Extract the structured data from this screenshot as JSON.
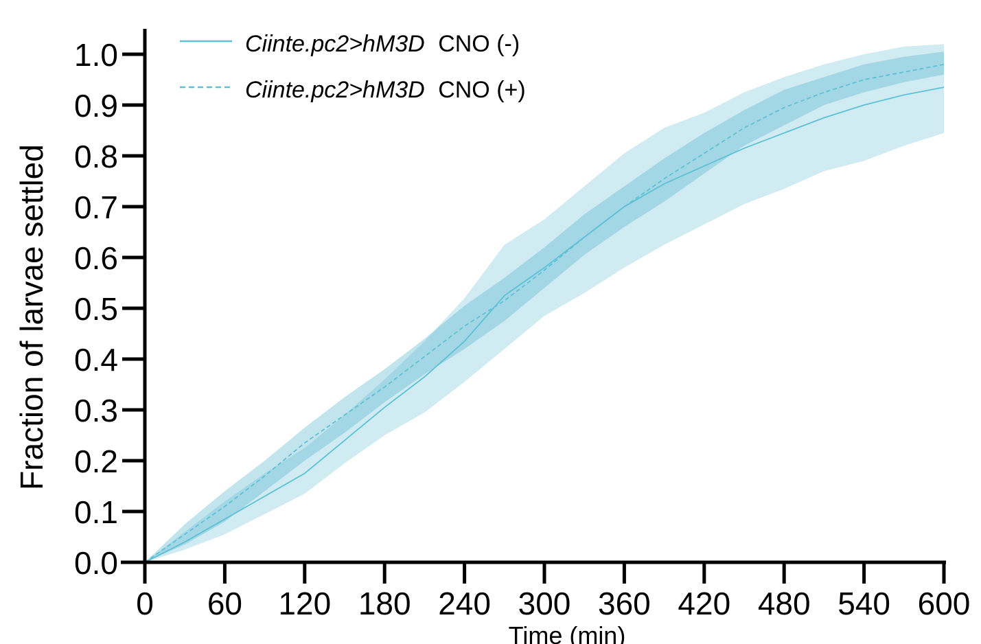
{
  "chart_data": {
    "type": "line",
    "title": "",
    "xlabel": "Time (min)",
    "ylabel": "Fraction of larvae settled",
    "xlim": [
      0,
      600
    ],
    "ylim": [
      0,
      1.0
    ],
    "x_ticks": [
      "0",
      "60",
      "120",
      "180",
      "240",
      "300",
      "360",
      "420",
      "480",
      "540",
      "600"
    ],
    "y_ticks": [
      "0.0",
      "0.1",
      "0.2",
      "0.3",
      "0.4",
      "0.5",
      "0.6",
      "0.7",
      "0.8",
      "0.9",
      "1.0"
    ],
    "grid": false,
    "legend_position": "top-left",
    "line_color": "#5bc2d6",
    "band_color": "#5bb8d0",
    "series": [
      {
        "name": "Ciinte.pc2>hM3D CNO (-)",
        "name_italic": "Ciinte.pc2>hM3D",
        "name_rest": "CNO (-)",
        "style": "solid",
        "x": [
          0,
          30,
          60,
          90,
          120,
          150,
          180,
          210,
          240,
          270,
          300,
          330,
          360,
          390,
          420,
          450,
          480,
          510,
          540,
          570,
          600
        ],
        "y": [
          0,
          0.04,
          0.085,
          0.13,
          0.175,
          0.24,
          0.305,
          0.365,
          0.435,
          0.525,
          0.58,
          0.64,
          0.7,
          0.745,
          0.78,
          0.815,
          0.845,
          0.875,
          0.9,
          0.92,
          0.935
        ],
        "lower": [
          0,
          0.025,
          0.055,
          0.095,
          0.135,
          0.195,
          0.25,
          0.295,
          0.355,
          0.42,
          0.485,
          0.53,
          0.58,
          0.625,
          0.665,
          0.705,
          0.735,
          0.77,
          0.79,
          0.82,
          0.845
        ],
        "upper": [
          0,
          0.06,
          0.12,
          0.175,
          0.225,
          0.29,
          0.36,
          0.435,
          0.52,
          0.625,
          0.675,
          0.74,
          0.805,
          0.855,
          0.885,
          0.925,
          0.955,
          0.98,
          1.0,
          1.015,
          1.02
        ]
      },
      {
        "name": "Ciinte.pc2>hM3D CNO (+)",
        "name_italic": "Ciinte.pc2>hM3D",
        "name_rest": "CNO (+)",
        "style": "dashed",
        "x": [
          0,
          30,
          60,
          90,
          120,
          150,
          180,
          210,
          240,
          270,
          300,
          330,
          360,
          390,
          420,
          450,
          480,
          510,
          540,
          570,
          600
        ],
        "y": [
          0,
          0.055,
          0.11,
          0.17,
          0.235,
          0.29,
          0.345,
          0.405,
          0.465,
          0.515,
          0.575,
          0.64,
          0.7,
          0.755,
          0.805,
          0.855,
          0.895,
          0.925,
          0.95,
          0.965,
          0.98
        ],
        "lower": [
          0,
          0.035,
          0.08,
          0.14,
          0.2,
          0.255,
          0.315,
          0.37,
          0.42,
          0.475,
          0.54,
          0.605,
          0.66,
          0.71,
          0.765,
          0.82,
          0.86,
          0.9,
          0.925,
          0.945,
          0.96
        ],
        "upper": [
          0,
          0.075,
          0.14,
          0.2,
          0.265,
          0.325,
          0.38,
          0.44,
          0.505,
          0.56,
          0.62,
          0.685,
          0.74,
          0.795,
          0.845,
          0.89,
          0.93,
          0.955,
          0.98,
          0.995,
          1.005
        ]
      }
    ]
  }
}
